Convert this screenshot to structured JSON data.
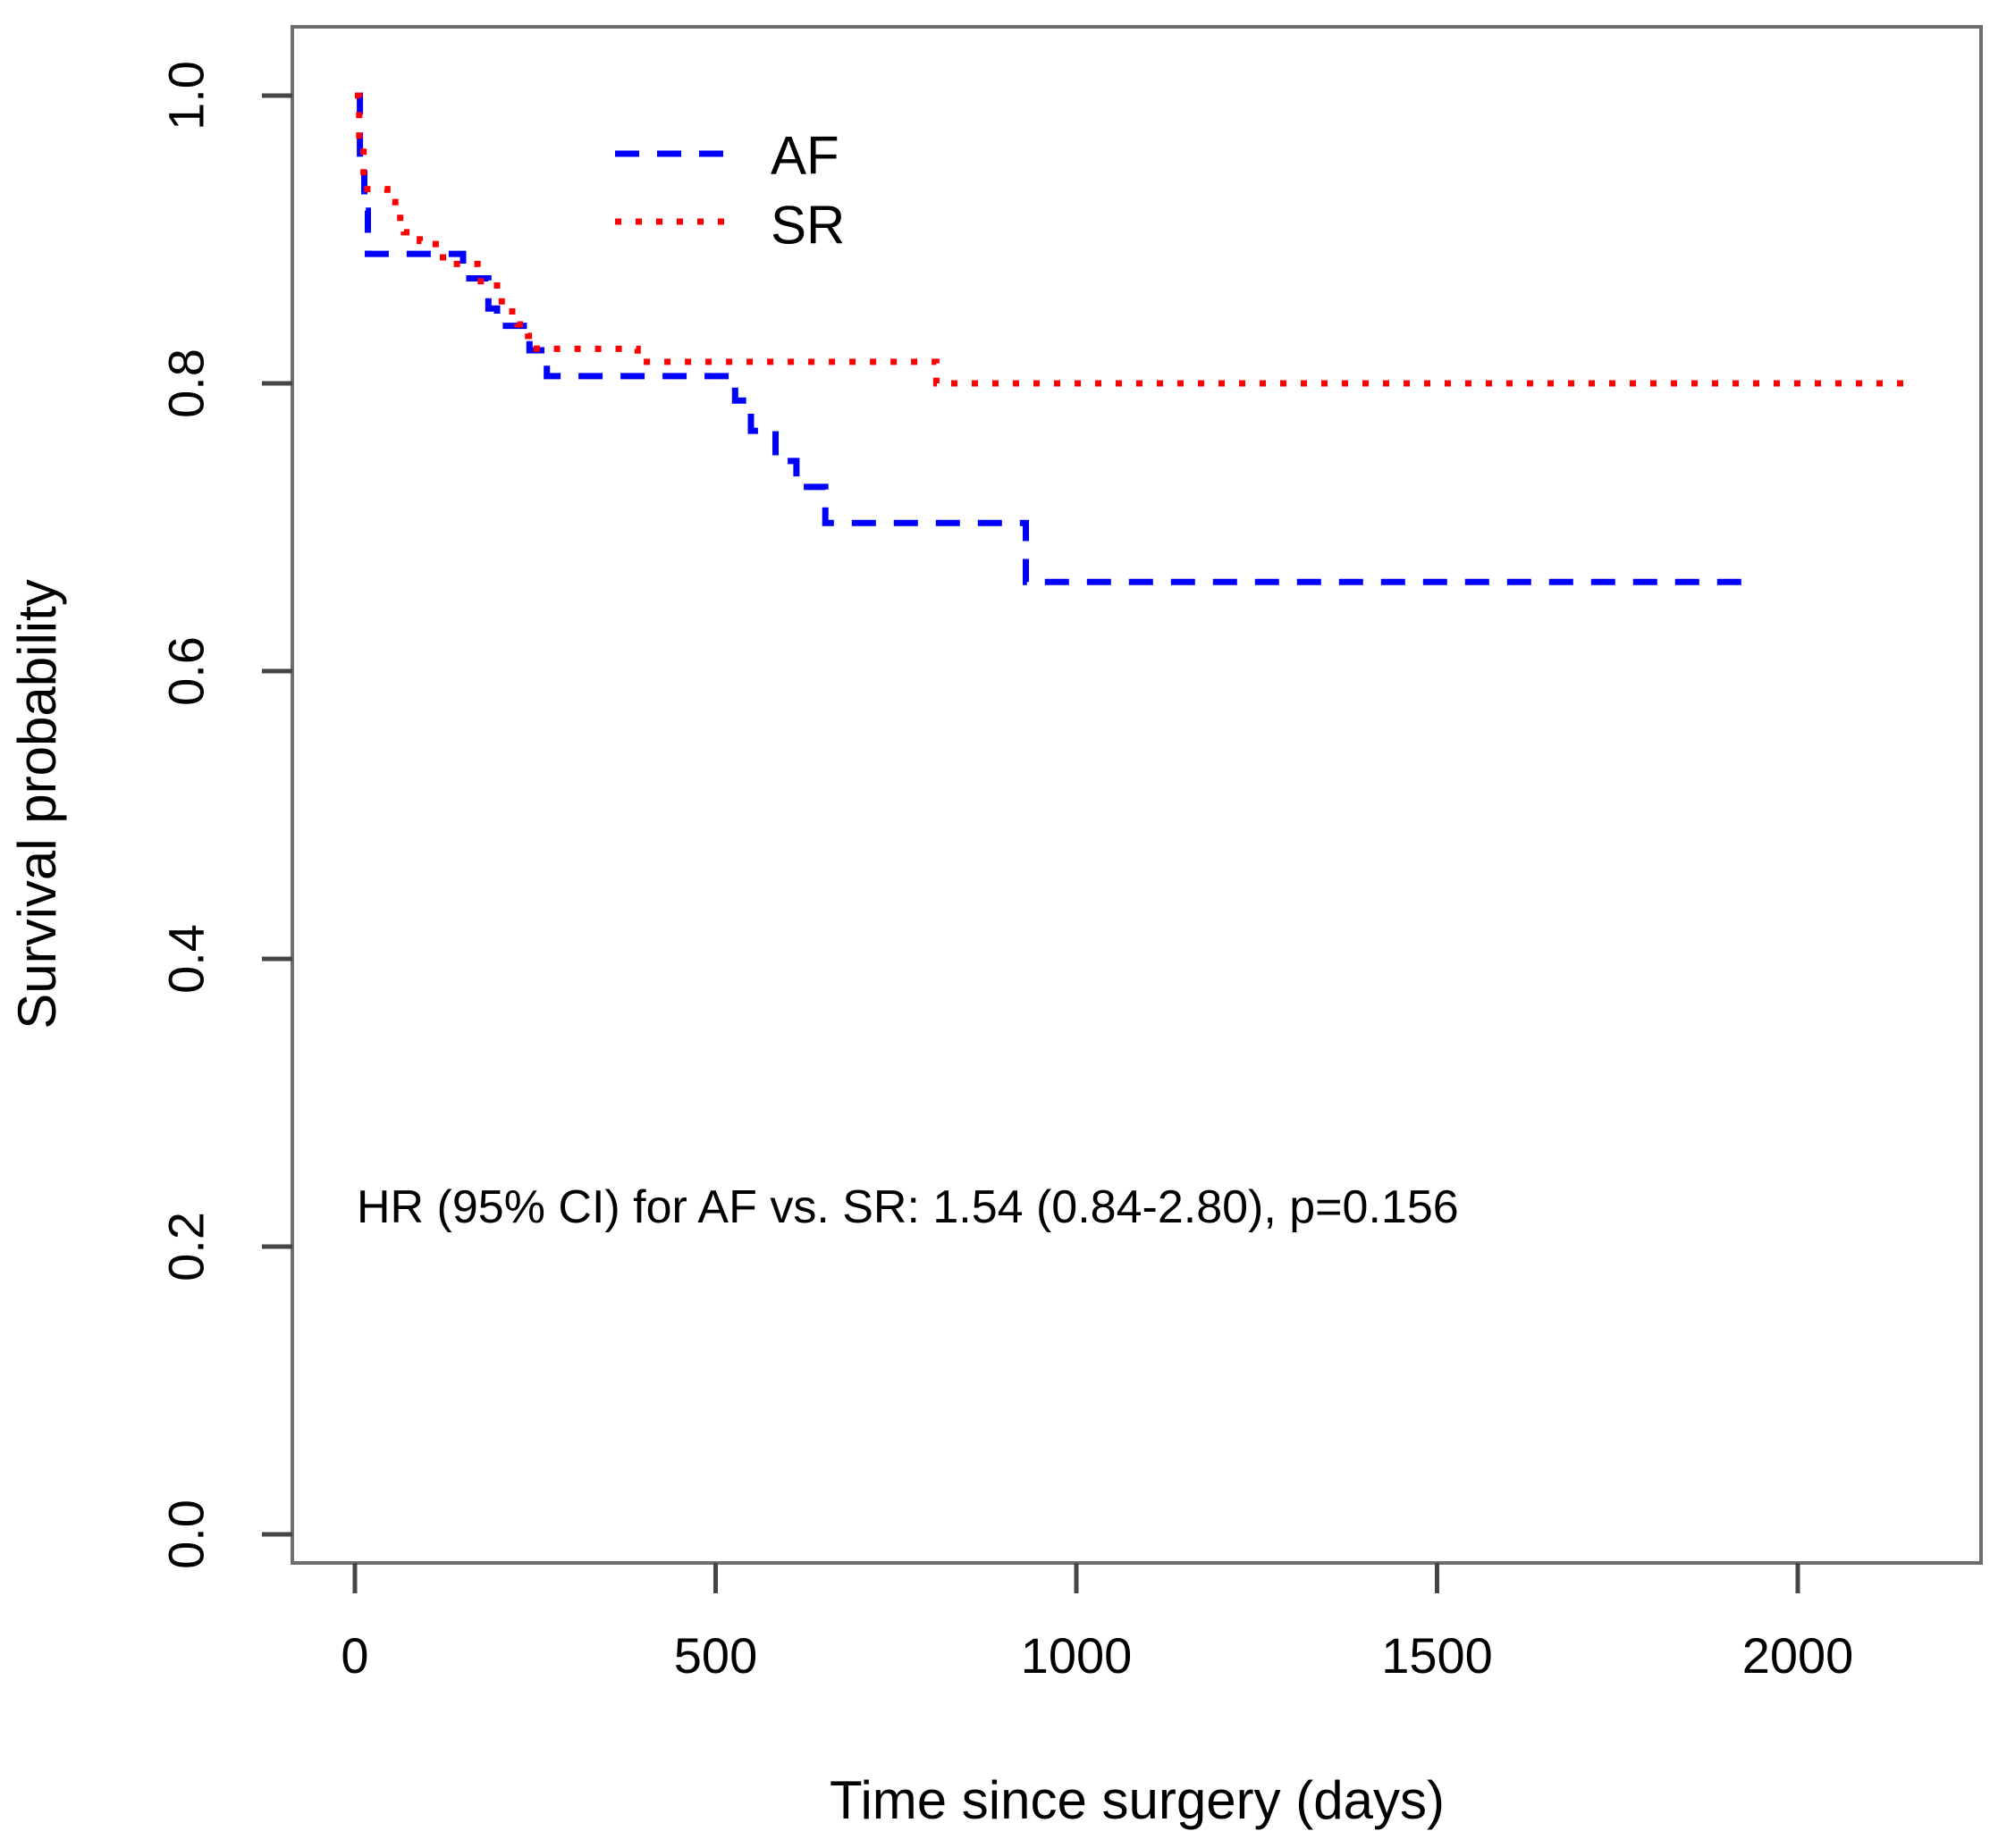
{
  "chart_data": {
    "type": "line",
    "subtype": "kaplan-meier-step-curves",
    "title": "",
    "xlabel": "Time since surgery (days)",
    "ylabel": "Survival probability",
    "xlim": [
      0,
      2200
    ],
    "ylim": [
      0.0,
      1.0
    ],
    "grid": false,
    "legend_position": "top-center",
    "axis_color": "#6e6e6e",
    "tick_color": "#454545",
    "text_color": "#000000",
    "background_color": "#ffffff",
    "xticks": {
      "values": [
        0,
        500,
        1000,
        1500,
        2000
      ],
      "labels": [
        "0",
        "500",
        "1000",
        "1500",
        "2000"
      ]
    },
    "yticks": {
      "values": [
        0,
        0.2,
        0.4,
        0.6,
        0.8,
        1.0
      ],
      "labels": [
        "0.0",
        "0.2",
        "0.4",
        "0.6",
        "0.8",
        "1.0"
      ]
    },
    "series": [
      {
        "name": "AF",
        "color": "#0000ff",
        "line_style": "dashed",
        "points": [
          [
            0,
            1.0
          ],
          [
            7,
            0.955
          ],
          [
            13,
            0.92
          ],
          [
            18,
            0.89
          ],
          [
            150,
            0.873
          ],
          [
            185,
            0.852
          ],
          [
            197,
            0.84
          ],
          [
            242,
            0.823
          ],
          [
            266,
            0.805
          ],
          [
            527,
            0.788
          ],
          [
            549,
            0.767
          ],
          [
            583,
            0.746
          ],
          [
            612,
            0.728
          ],
          [
            652,
            0.703
          ],
          [
            930,
            0.662
          ]
        ],
        "end_time": 1945
      },
      {
        "name": "SR",
        "color": "#ff0000",
        "line_style": "dotted",
        "points": [
          [
            0,
            1.0
          ],
          [
            6,
            0.965
          ],
          [
            12,
            0.935
          ],
          [
            45,
            0.926
          ],
          [
            56,
            0.915
          ],
          [
            68,
            0.905
          ],
          [
            90,
            0.899
          ],
          [
            112,
            0.894
          ],
          [
            122,
            0.883
          ],
          [
            170,
            0.871
          ],
          [
            197,
            0.857
          ],
          [
            213,
            0.85
          ],
          [
            225,
            0.841
          ],
          [
            240,
            0.833
          ],
          [
            252,
            0.824
          ],
          [
            392,
            0.815
          ],
          [
            806,
            0.8
          ]
        ],
        "end_time": 2165
      }
    ],
    "annotation": {
      "text": "HR (95% CI) for AF vs. SR: 1.54 (0.84-2.80), p=0.156",
      "x_day": 2,
      "y_prob": 0.217
    }
  }
}
